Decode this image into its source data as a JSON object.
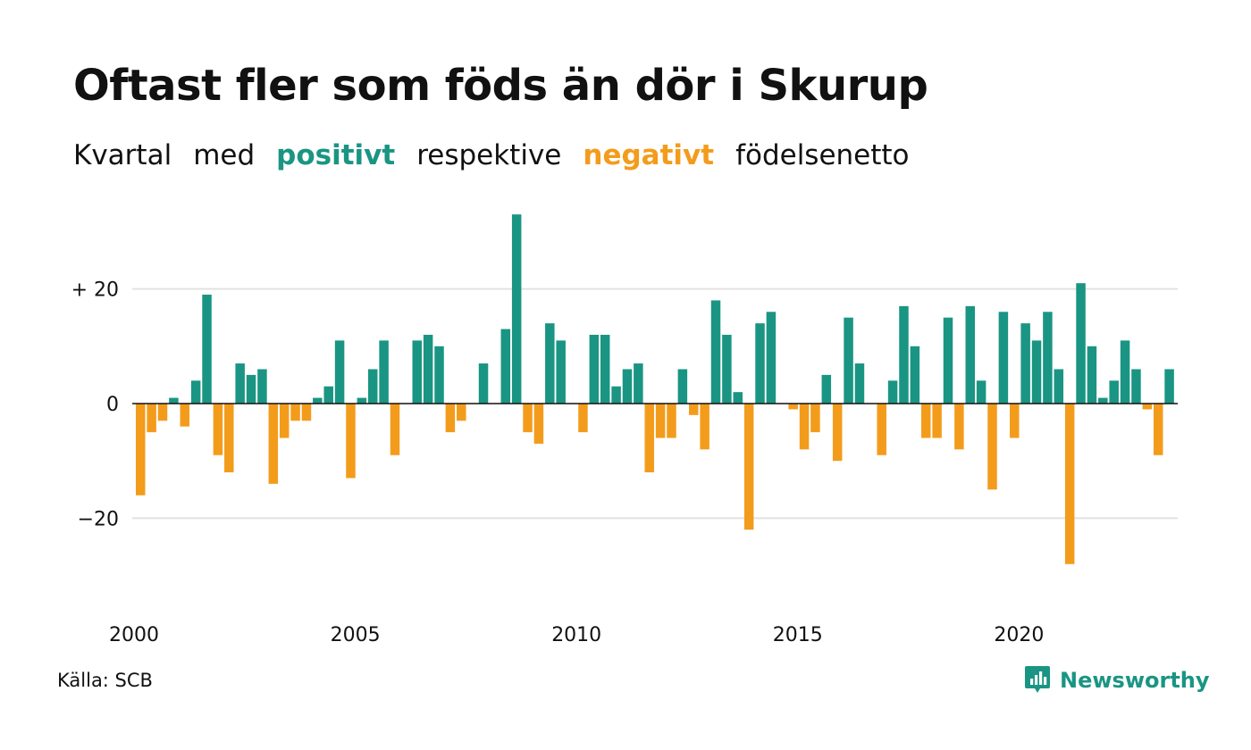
{
  "header": {
    "title": "Oftast fler som föds än dör i Skurup",
    "subtitle_parts": [
      "Kvartal",
      "med",
      "positivt",
      "respektive",
      "negativt",
      "födelsenetto"
    ]
  },
  "footer": {
    "source": "Källa: SCB",
    "brand": "Newsworthy",
    "brand_icon": "bar-chart-icon"
  },
  "colors": {
    "positive": "#1a9583",
    "negative": "#f39c1c",
    "grid": "#e2e2e2",
    "zero_line": "#111111"
  },
  "chart_data": {
    "type": "bar",
    "title": "Oftast fler som föds än dör i Skurup",
    "xlabel": "",
    "ylabel": "",
    "ylim": [
      -30,
      34
    ],
    "yticks": [
      {
        "value": 20,
        "label": "+ 20"
      },
      {
        "value": 0,
        "label": "0"
      },
      {
        "value": -20,
        "label": "−20"
      }
    ],
    "xticks": [
      {
        "value": 2000,
        "label": "2000"
      },
      {
        "value": 2005,
        "label": "2005"
      },
      {
        "value": 2010,
        "label": "2010"
      },
      {
        "value": 2015,
        "label": "2015"
      },
      {
        "value": 2020,
        "label": "2020"
      }
    ],
    "start_quarter": "2000 Q1",
    "grid": true,
    "legend": "none",
    "values": [
      -16,
      -5,
      -3,
      1,
      -4,
      4,
      19,
      -9,
      -12,
      7,
      5,
      6,
      -14,
      -6,
      -3,
      -3,
      1,
      3,
      11,
      -13,
      1,
      6,
      11,
      -9,
      0,
      11,
      12,
      10,
      -5,
      -3,
      0,
      7,
      0,
      13,
      33,
      -5,
      -7,
      14,
      11,
      0,
      -5,
      12,
      12,
      3,
      6,
      7,
      -12,
      -6,
      -6,
      6,
      -2,
      -8,
      18,
      12,
      2,
      -22,
      14,
      16,
      0,
      -1,
      -8,
      -5,
      5,
      -10,
      15,
      7,
      0,
      -9,
      4,
      17,
      10,
      -6,
      -6,
      15,
      -8,
      17,
      4,
      -15,
      16,
      -6,
      14,
      11,
      16,
      6,
      -28,
      21,
      10,
      1,
      4,
      11,
      6,
      -1,
      -9,
      6
    ]
  }
}
